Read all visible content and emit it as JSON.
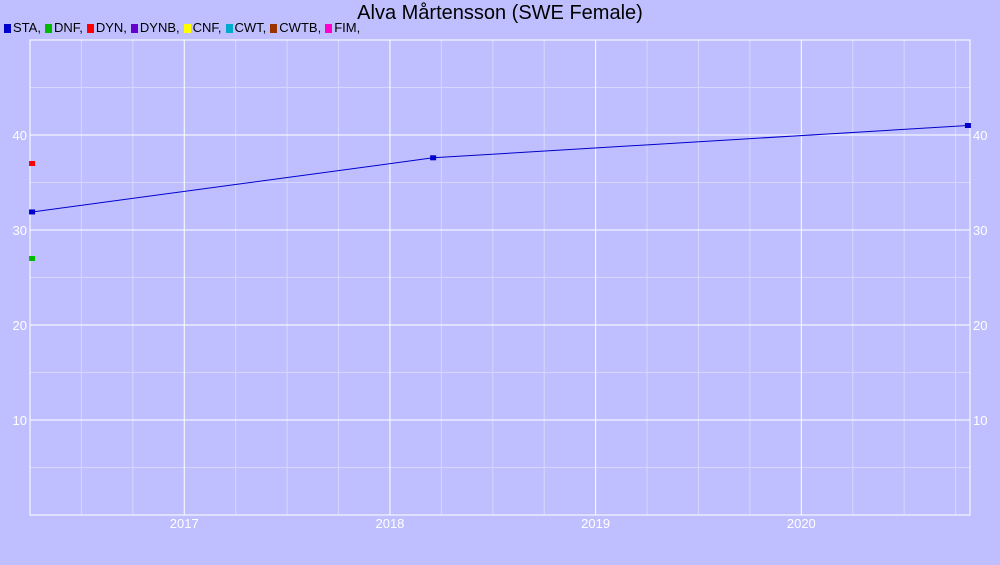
{
  "chart_data": {
    "type": "line",
    "title": "Alva Mårtensson (SWE Female)",
    "xlabel": "",
    "ylabel": "",
    "xlim": [
      2016.25,
      2020.82
    ],
    "ylim": [
      0,
      50
    ],
    "grid": true,
    "legend_placement": "top-left",
    "x_ticks": [
      2017,
      2018,
      2019,
      2020
    ],
    "x_tick_labels": [
      "2017",
      "2018",
      "2019",
      "2020"
    ],
    "y_ticks": [
      10,
      20,
      30,
      40
    ],
    "y_tick_labels": [
      "10",
      "20",
      "30",
      "40"
    ],
    "legend": [
      {
        "label": "STA,",
        "color": "#0000cc"
      },
      {
        "label": "DNF,",
        "color": "#00bb00"
      },
      {
        "label": "DYN,",
        "color": "#ff0000"
      },
      {
        "label": "DYNB,",
        "color": "#6600cc"
      },
      {
        "label": "CNF,",
        "color": "#ffff00"
      },
      {
        "label": "CWT,",
        "color": "#00aacc"
      },
      {
        "label": "CWTB,",
        "color": "#993300"
      },
      {
        "label": "FIM,",
        "color": "#ff00cc"
      }
    ],
    "series": [
      {
        "color": "#0000cc",
        "connected": true,
        "points": [
          {
            "x": 2016.26,
            "y": 31.9
          },
          {
            "x": 2018.21,
            "y": 37.6
          },
          {
            "x": 2020.81,
            "y": 41.0
          }
        ]
      },
      {
        "color": "#ff0000",
        "connected": false,
        "points": [
          {
            "x": 2016.26,
            "y": 37.0
          }
        ]
      },
      {
        "color": "#00bb00",
        "connected": false,
        "points": [
          {
            "x": 2016.26,
            "y": 27.0
          }
        ]
      }
    ]
  }
}
